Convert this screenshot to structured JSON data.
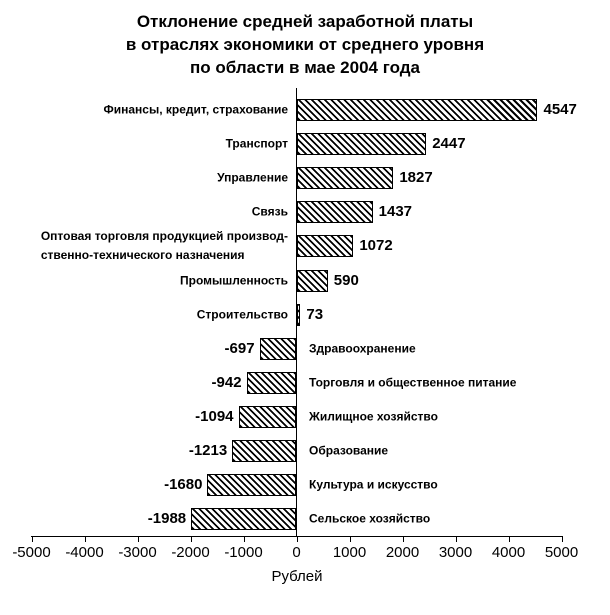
{
  "page": {
    "background": "#ffffff",
    "text_color": "#000000"
  },
  "chart_data": {
    "type": "bar",
    "orientation": "horizontal",
    "title": "Отклонение средней заработной платы в отраслях экономики от среднего уровня по области в мае 2004 года",
    "title_lines": [
      "Отклонение средней заработной платы",
      "в отраслях экономики от среднего уровня",
      "по области в мае 2004 года"
    ],
    "xlabel": "Рублей",
    "ylabel": "",
    "xlim": [
      -5000,
      5000
    ],
    "xtick_step": 1000,
    "xticks": [
      -5000,
      -4000,
      -3000,
      -2000,
      -1000,
      0,
      1000,
      2000,
      3000,
      4000,
      5000
    ],
    "grid": false,
    "legend": false,
    "value_labels_shown": true,
    "bar_style": {
      "fill": "diagonal-hatch",
      "hatch_direction": "\\",
      "hatch_color": "#000000",
      "bar_background": "#ffffff",
      "border_color": "#000000"
    },
    "categories": [
      "Финансы, кредит, страхование",
      "Транспорт",
      "Управление",
      "Связь",
      "Оптовая торговля продукцией производ-\nственно-технического назначения",
      "Промышленность",
      "Строительство",
      "Здравоохранение",
      "Торговля и общественное питание",
      "Жилищное хозяйство",
      "Образование",
      "Культура и искусство",
      "Сельское хозяйство"
    ],
    "values": [
      4547,
      2447,
      1827,
      1437,
      1072,
      590,
      73,
      -697,
      -942,
      -1094,
      -1213,
      -1680,
      -1988
    ]
  }
}
